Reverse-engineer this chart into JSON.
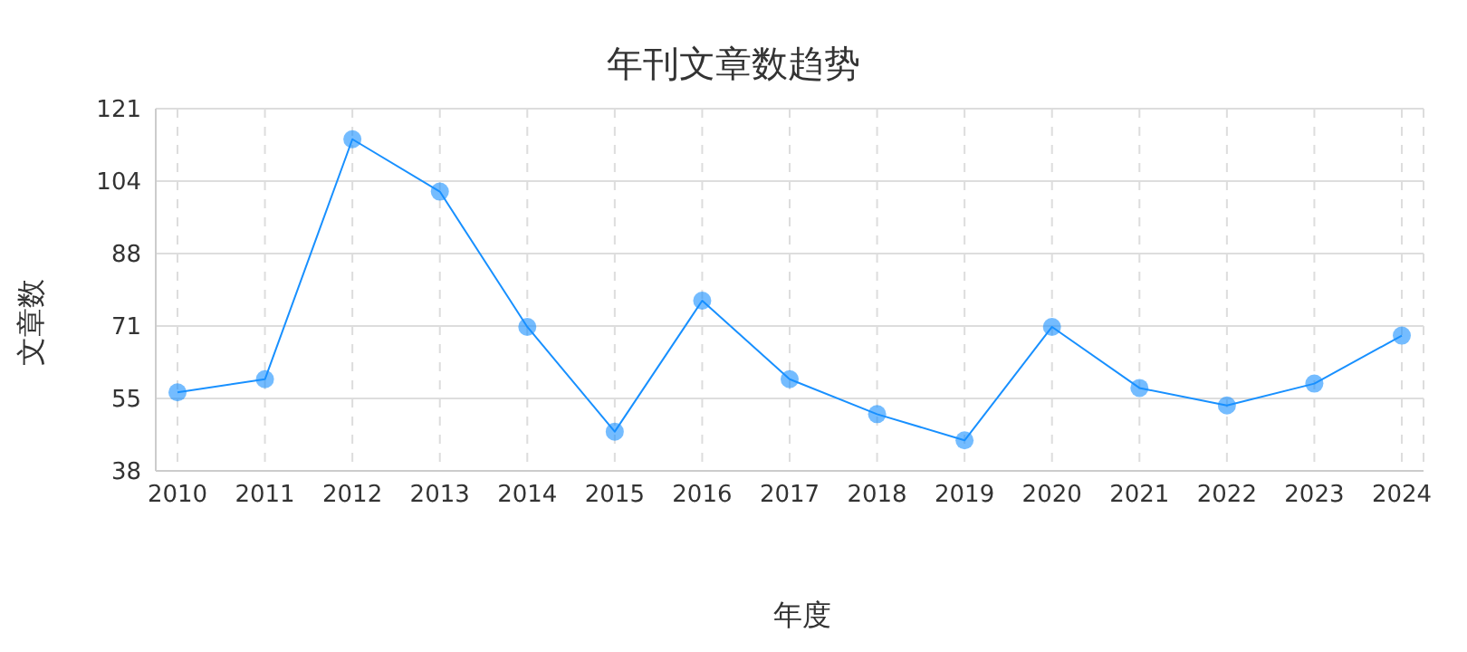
{
  "chart_data": {
    "type": "line",
    "title": "年刊文章数趋势",
    "xlabel": "年度",
    "ylabel": "文章数",
    "categories": [
      "2010",
      "2011",
      "2012",
      "2013",
      "2014",
      "2015",
      "2016",
      "2017",
      "2018",
      "2019",
      "2020",
      "2021",
      "2022",
      "2023",
      "2024"
    ],
    "series": [
      {
        "color": "#1890ff",
        "values": [
          56,
          59,
          114,
          102,
          71,
          47,
          77,
          59,
          51,
          45,
          71,
          57,
          53,
          58,
          69
        ]
      }
    ],
    "ylim": [
      38,
      121
    ],
    "yticks": [
      38,
      {
        "value": 54.6,
        "label": "55"
      },
      {
        "value": 71.2,
        "label": "71"
      },
      {
        "value": 87.8,
        "label": "88"
      },
      {
        "value": 104.4,
        "label": "104"
      },
      121
    ],
    "grid": true,
    "marker": "circle",
    "line_style": "solid",
    "legend": false
  }
}
